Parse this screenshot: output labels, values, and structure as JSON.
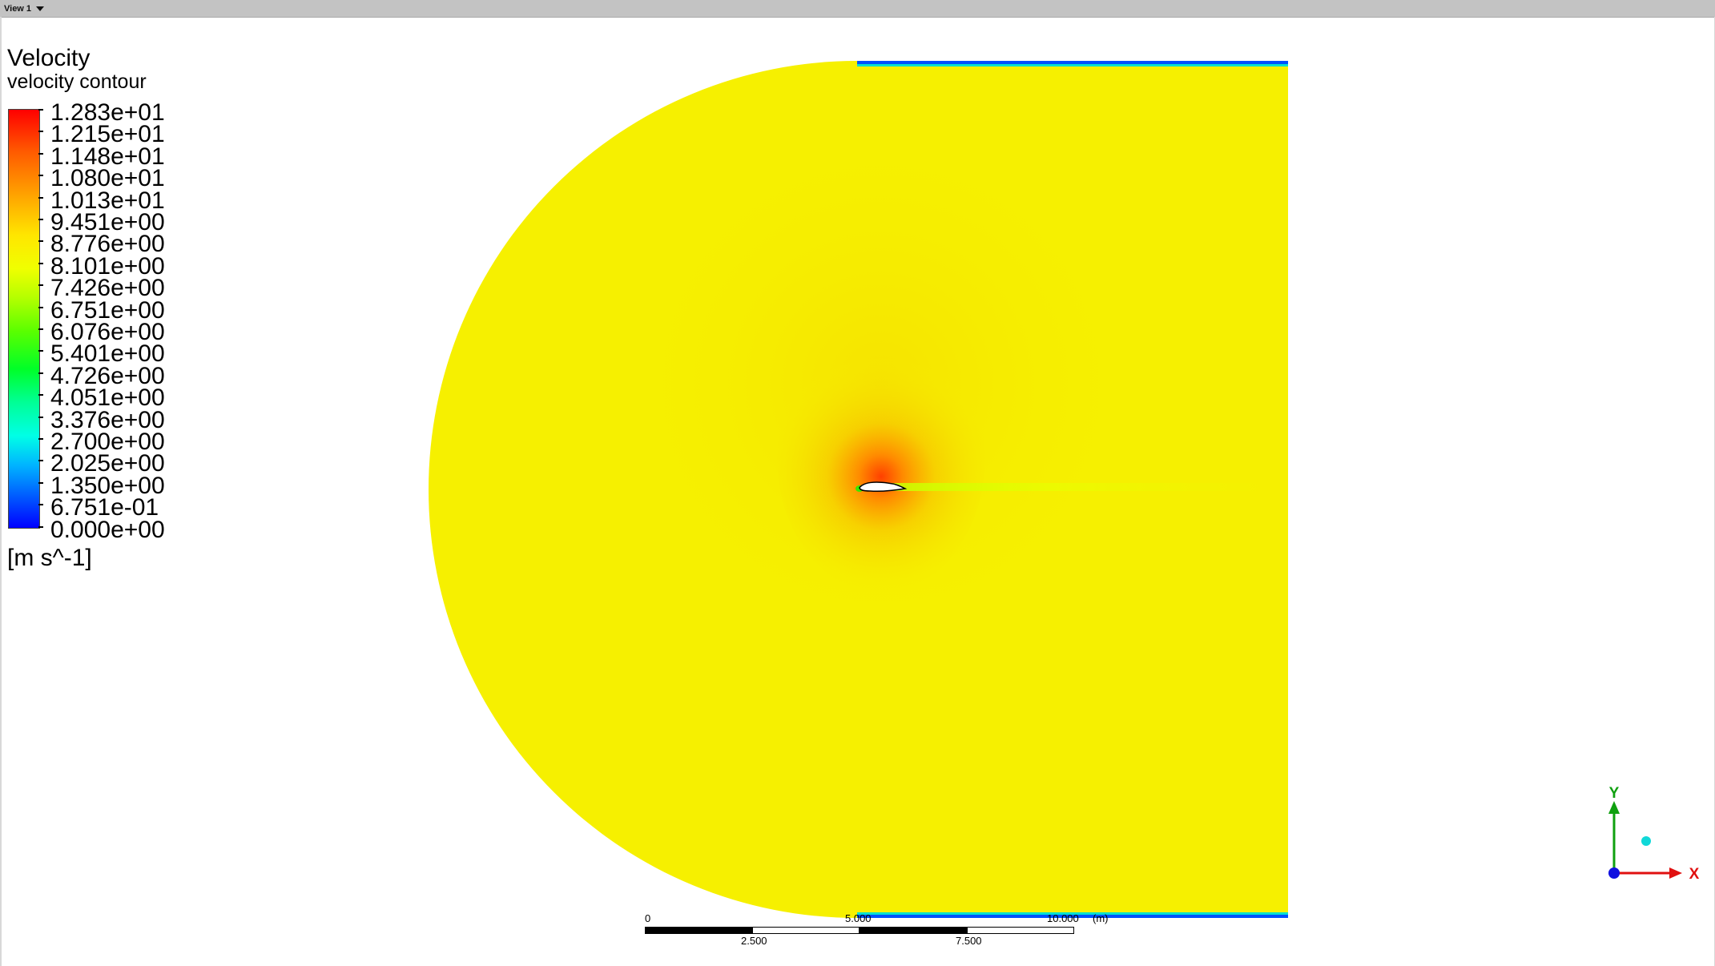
{
  "toolbar": {
    "view_tab_label": "View 1",
    "view_dropdown_icon": "chevron-down-icon"
  },
  "legend": {
    "title": "Velocity",
    "subtitle": "velocity contour",
    "units": "[m s^-1]",
    "levels": [
      "1.283e+01",
      "1.215e+01",
      "1.148e+01",
      "1.080e+01",
      "1.013e+01",
      "9.451e+00",
      "8.776e+00",
      "8.101e+00",
      "7.426e+00",
      "6.751e+00",
      "6.076e+00",
      "5.401e+00",
      "4.726e+00",
      "4.051e+00",
      "3.376e+00",
      "2.700e+00",
      "2.025e+00",
      "1.350e+00",
      "6.751e-01",
      "0.000e+00"
    ],
    "colormap": [
      "#ff0000",
      "#ffa000",
      "#f0ff00",
      "#00ff28",
      "#00ffe6",
      "#0000ff"
    ]
  },
  "contour": {
    "background_color": "#f6f000",
    "stagnation_color": "#ff7a00",
    "wall_color": "#0050ff",
    "airfoil_fill": "#ffffff"
  },
  "scale_bar": {
    "top_labels": [
      "0",
      "5.000",
      "10.000"
    ],
    "bottom_labels": [
      "2.500",
      "7.500"
    ],
    "unit": "(m)"
  },
  "axes": {
    "y_label": "Y",
    "x_label": "X",
    "y_color": "#0fa00f",
    "x_color": "#e01010",
    "z_color": "#1010e0"
  }
}
